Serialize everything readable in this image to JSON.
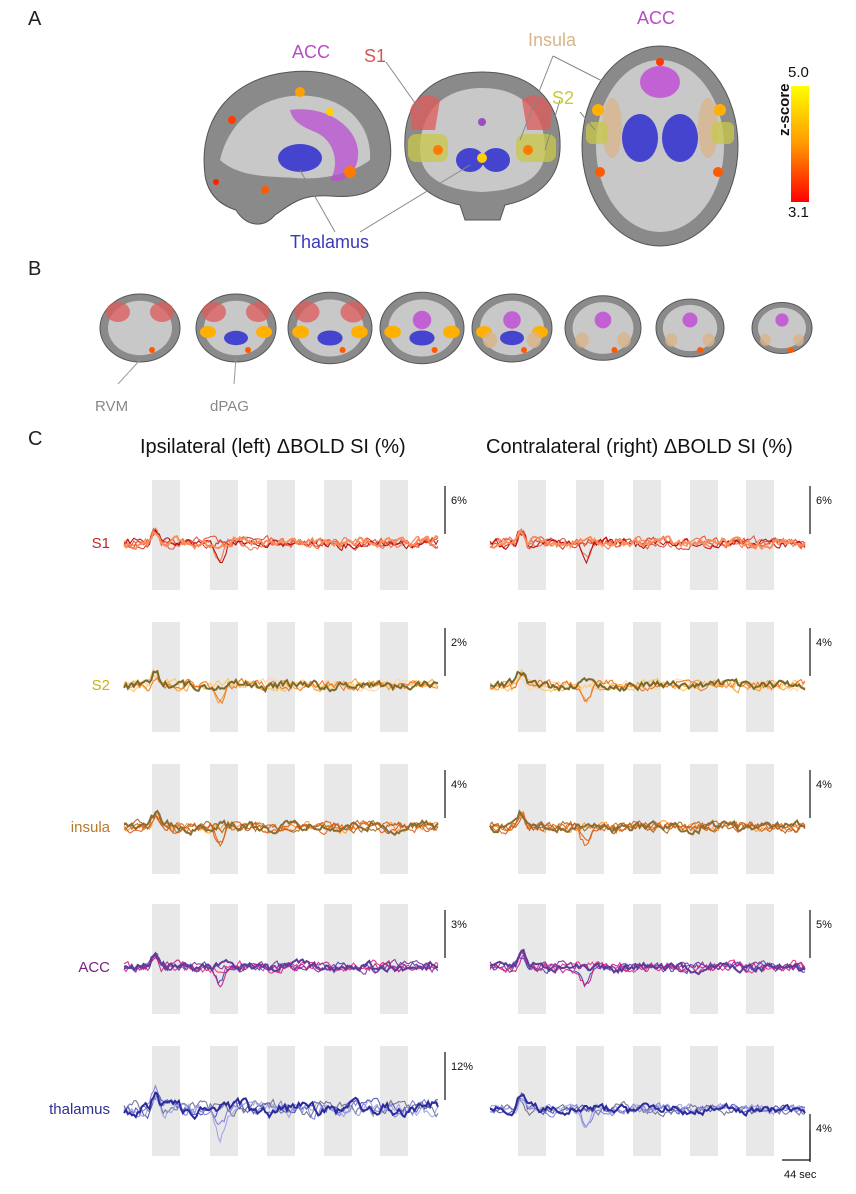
{
  "panels": {
    "a": {
      "letter": "A",
      "region_labels": {
        "acc_sagittal": "ACC",
        "s1": "S1",
        "insula": "Insula",
        "acc_axial": "ACC",
        "s2": "S2",
        "thalamus": "Thalamus"
      },
      "colorbar": {
        "max": "5.0",
        "min": "3.1",
        "label": "z-score"
      }
    },
    "b": {
      "letter": "B",
      "labels": {
        "rvm": "RVM",
        "dpag": "dPAG"
      },
      "slice_count": 8
    },
    "c": {
      "letter": "C",
      "headings": {
        "left": "Ipsilateral (left) ΔBOLD SI (%)",
        "right": "Contralateral (right) ΔBOLD SI (%)"
      },
      "time_scale": "44 sec",
      "rows": [
        {
          "region": "S1",
          "color": "#c0272d",
          "left_scale": "6%",
          "right_scale": "6%",
          "trace_colors": [
            "#d7301f",
            "#f46d43",
            "#e34a33",
            "#b30000",
            "#fc8d59"
          ]
        },
        {
          "region": "S2",
          "color": "#c9b21a",
          "left_scale": "2%",
          "right_scale": "4%",
          "trace_colors": [
            "#fec44f",
            "#fe9929",
            "#fdd49e",
            "#ec7014",
            "#7a6a2a"
          ]
        },
        {
          "region": "insula",
          "color": "#b8782a",
          "left_scale": "4%",
          "right_scale": "4%",
          "trace_colors": [
            "#fe9929",
            "#e6550d",
            "#a6611a",
            "#d95f0e",
            "#8c6d31"
          ]
        },
        {
          "region": "ACC",
          "color": "#7a1f86",
          "left_scale": "3%",
          "right_scale": "5%",
          "trace_colors": [
            "#e7298a",
            "#3f3fbf",
            "#7b2d8e",
            "#c51b7d",
            "#5e3c99"
          ]
        },
        {
          "region": "thalamus",
          "color": "#2e3192",
          "left_scale": "12%",
          "right_scale": "4%",
          "trace_colors": [
            "#4a4ab0",
            "#7b7bd6",
            "#6a6a8c",
            "#9aa0e6",
            "#2b2b9e"
          ]
        }
      ]
    }
  }
}
